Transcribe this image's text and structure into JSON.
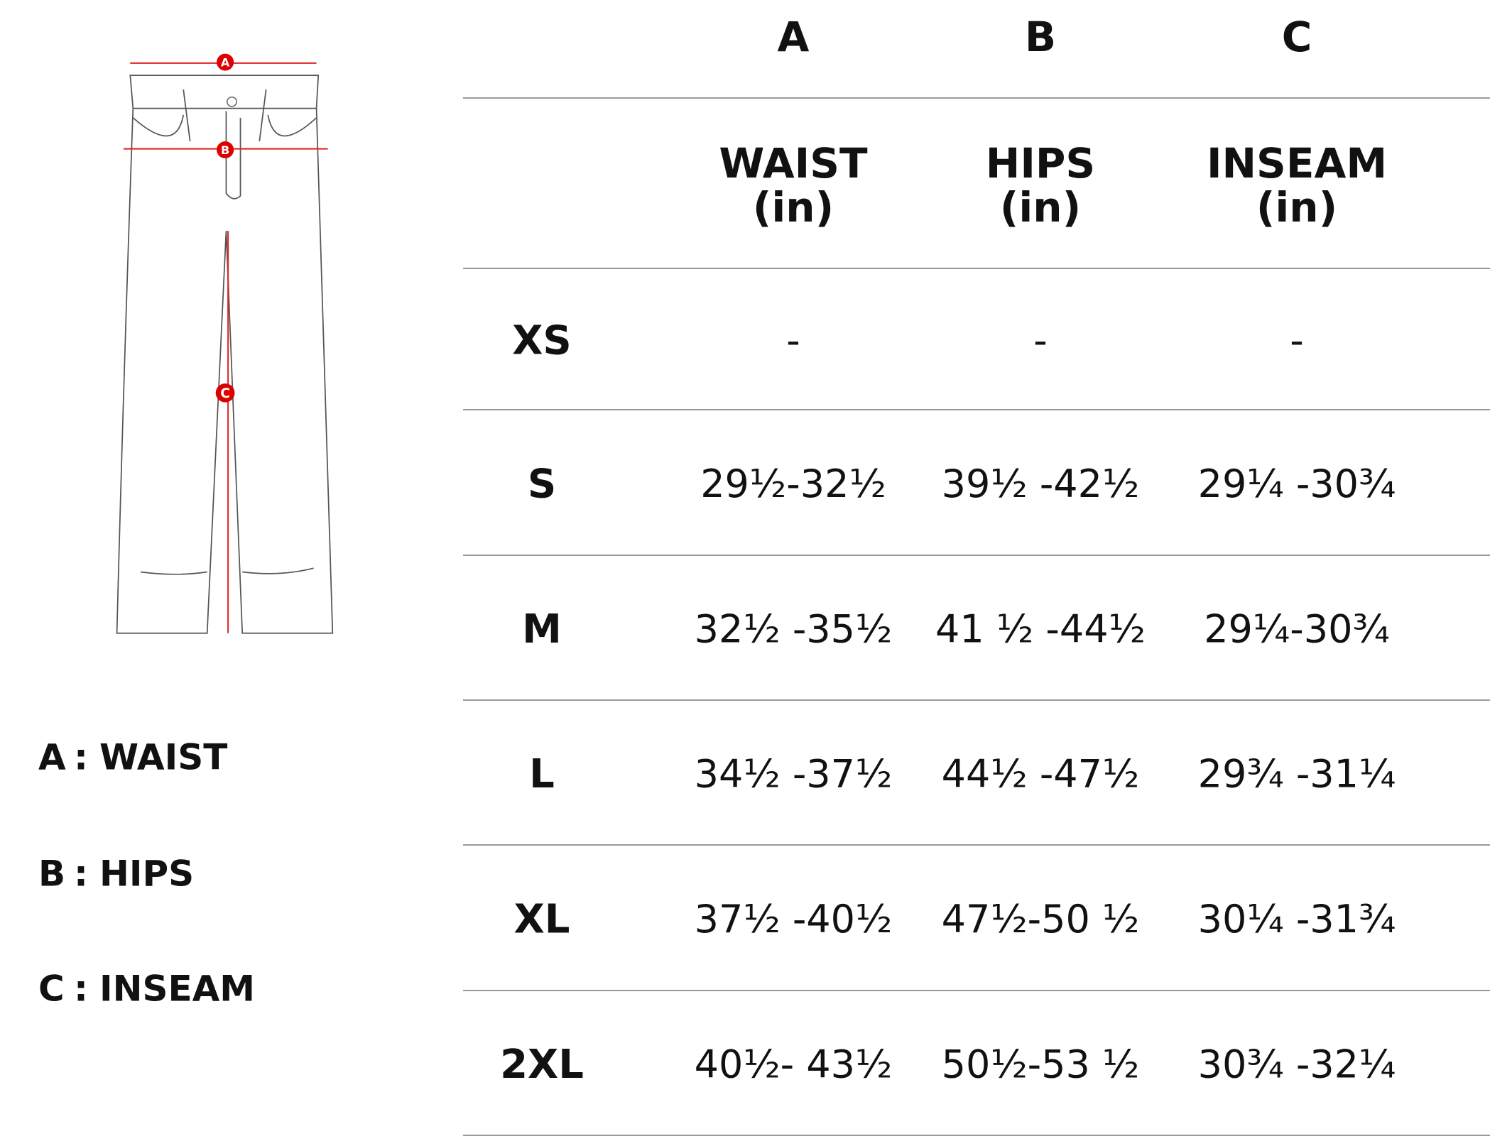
{
  "diagram": {
    "markers": [
      "A",
      "B",
      "C"
    ]
  },
  "legend": [
    {
      "letter": "A",
      "label": "WAIST"
    },
    {
      "letter": "B",
      "label": "HIPS"
    },
    {
      "letter": "C",
      "label": "INSEAM"
    }
  ],
  "legend_separator": ":",
  "table": {
    "letters": [
      "A",
      "B",
      "C"
    ],
    "columns": [
      {
        "name": "WAIST",
        "unit": "(in)"
      },
      {
        "name": "HIPS",
        "unit": "(in)"
      },
      {
        "name": "INSEAM",
        "unit": "(in)"
      }
    ],
    "rows": [
      [
        "XS",
        "-",
        "-",
        "-"
      ],
      [
        "S",
        "29½-32½",
        "39½ -42½",
        "29¼ -30¾"
      ],
      [
        "M",
        "32½ -35½",
        "41 ½ -44½",
        "29¼-30¾"
      ],
      [
        "L",
        "34½ -37½",
        "44½ -47½",
        "29¾ -31¼"
      ],
      [
        "XL",
        "37½ -40½",
        "47½-50 ½",
        "30¼ -31¾"
      ],
      [
        "2XL",
        "40½- 43½",
        "50½-53 ½",
        "30¾ -32¼"
      ]
    ]
  }
}
